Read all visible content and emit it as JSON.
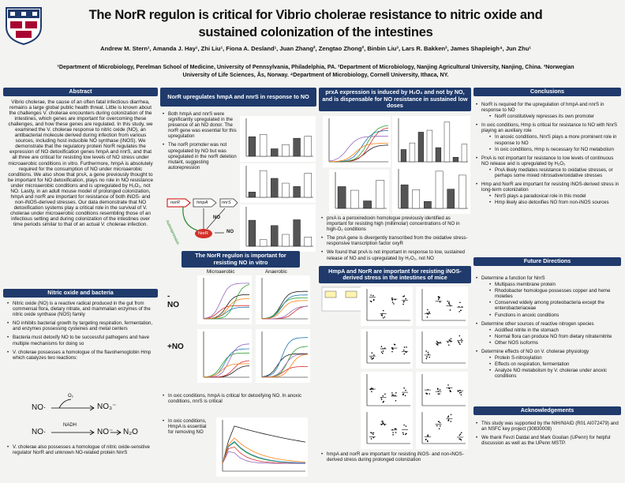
{
  "header": {
    "title": "The NorR regulon is critical for Vibrio cholerae resistance to nitric oxide and sustained colonization of the intestines",
    "authors": "Andrew M. Stern¹, Amanda J. Hay¹, Zhi Liu¹, Fiona A. Desland¹, Juan Zhang², Zengtao Zhong², Binbin Liu³, Lars R. Bakken³, James Shapleigh⁴, Jun Zhu¹",
    "affiliations": "¹Department of Microbiology, Perelman School of Medicine, University of Pennsylvania, Philadelphia, PA. ²Department of Microbiology, Nanjing Agricultural University, Nanjing, China. ³Norwegian University of Life Sciences, Ås, Norway. ⁴Department of Microbiology, Cornell University, Ithaca, NY."
  },
  "abstract": {
    "heading": "Abstract",
    "text": "Vibrio cholerae, the cause of an often fatal infectious diarrhea, remains a large global public health threat. Little is known about the challenges V. cholerae encounters during colonization of the intestines, which genes are important for overcoming these challenges, and how these genes are regulated. In this study, we examined the V. cholerae response to nitric oxide (NO), an antibacterial molecule derived during infection from various sources, including host inducible NO synthase (iNOS). We demonstrate that the regulatory protein NorR regulates the expression of NO detoxification genes hmpA and nnrS, and that all three are critical for resisting low levels of NO stress under microaerobic conditions in vitro. Furthermore, hmpA is absolutely required for the consumption of NO under microaerobic conditions. We also show that prxA, a gene previously thought to be important for NO detoxification, plays no role in NO resistance under microaerobic conditions and is upregulated by H₂O₂, not NO. Lastly, in an adult mouse model of prolonged colonization, hmpA and norR are important for resistance of both iNOS- and non-iNOS-derived stresses. Our data demonstrate that NO detoxification systems play a critical role in the survival of V. cholerae under microaerobic conditions resembling those of an infectious setting and during colonization of the intestines over time periods similar to that of an actual V. cholerae infection."
  },
  "nitric_oxide": {
    "heading": "Nitric oxide and bacteria",
    "bullets": [
      "Nitric oxide (NO) is a reactive radical produced in the gut from commensal flora, dietary nitrate, and mammalian enzymes of the nitric oxide synthase (NOS) family",
      "NO inhibits bacterial growth by targeting respiration, fermentation, and enzymes possessing cysteines and metal centers",
      "Bacteria must detoxify NO to be successful pathogens and have multiple mechanisms for doing so",
      "V. cholerae possesses a homologue of the flavohemoglobin Hmp which catalyzes two reactions:"
    ],
    "reactions": [
      {
        "substrate": "NO·",
        "cofactor": "O₂",
        "products": [
          "NO₃⁻"
        ]
      },
      {
        "substrate": "NO·",
        "cofactor": "NADH",
        "products": [
          "NO⁻",
          "N₂O"
        ]
      }
    ],
    "closing_bullets": [
      "V. cholerae also possesses a homologue of nitric oxide-sensitive regulator NorR and unknown NO-related protein NnrS"
    ]
  },
  "norr_upregulates": {
    "heading": "NorR upregulates hmpA and nnrS in response to NO",
    "bullets": [
      "Both hmpA and nnrS were significantly upregulated in the presence of an NO donor. The norR gene was essential for this upregulation",
      "The norR promoter was not upregulated by NO but was upregulated in the norR deletion mutant, suggesting autorepression"
    ],
    "diagram": {
      "genes": [
        "norR",
        "hmpA",
        "nnrS"
      ],
      "protein": "NorR",
      "feedback": "Autorepression",
      "signals": [
        "NO",
        "NO"
      ]
    }
  },
  "regulon": {
    "heading": "The NorR regulon is important for resisting NO in vitro",
    "conditions": [
      "Microaerobic",
      "Anaerobic"
    ],
    "treatments": [
      "-NO",
      "+NO"
    ],
    "bullets": [
      "In oxic conditions, hmpA is critical for detoxifying NO. In anoxic conditions, nnrS is critical"
    ],
    "side_bullets": [
      "In oxic conditions, HmpA is essential for removing NO"
    ]
  },
  "prxa": {
    "heading": "prxA expression is induced by H₂O₂ and not by NO, and is dispensable for NO resistance in sustained low doses",
    "bullets": [
      "prxA is a peroxiredoxin homologue previously identified as important for resisting high (millimolar) concentrations of NO in high-O₂ conditions",
      "The prxA gene is divergently transcribed from the oxidative stress-responsive transcription factor oxyR",
      "We found that prxA is not important in response to low, sustained release of NO and is upregulated by H₂O₂, not NO"
    ]
  },
  "mice": {
    "heading": "HmpA and NorR are important for resisting iNOS-derived stress in the intestines of mice",
    "bullets": [
      "hmpA and norR are important for resisting iNOS- and non-iNOS-derived stress during prolonged colonization"
    ]
  },
  "conclusions": {
    "heading": "Conclusions",
    "bullets": [
      {
        "text": "NorR is required for the upregulation of hmpA and nnrS in response to NO",
        "sub": [
          "NorR constitutively represses its own promoter"
        ]
      },
      {
        "text": "In oxic conditions, Hmp is critical for resistance to NO with NnrS playing an auxiliary role",
        "sub": [
          "In anoxic conditions, NnrS plays a more prominent role in response to NO",
          "In oxic conditions, Hmp is necessary for NO metabolism"
        ]
      },
      {
        "text": "PrxA is not important for resistance to low levels of continuous NO release and is upregulated by H₂O₂",
        "sub": [
          "PrxA likely mediates resistance to oxidative stresses, or perhaps some mixed nitrosative/oxidative stresses"
        ]
      },
      {
        "text": "Hmp and NorR are important for resisting iNOS-derived stress in long-term colonization",
        "sub": [
          "NnrS plays a paradoxical role in this model",
          "Hmp likely also detoxifies NO from non-iNOS sources"
        ]
      }
    ]
  },
  "future": {
    "heading": "Future Directions",
    "bullets": [
      {
        "text": "Determine a function for NnrS",
        "sub": [
          "Multipass membrane protein",
          "Rhodobacter homologue possesses copper and heme moieties",
          "Conserved widely among proteobacteria except the enterobacteriaceae",
          "Functions in anoxic conditions"
        ]
      },
      {
        "text": "Determine other sources of reactive nitrogen species",
        "sub": [
          "Acidified nitrite in the stomach",
          "Normal flora can produce NO from dietary nitrate/nitrite",
          "Other NOS isoforms"
        ]
      },
      {
        "text": "Determine effects of NO on V. cholerae physiology",
        "sub": [
          "Protein S-nitrosylation",
          "Effects on respiration, fermentation",
          "Analyze NO metabolism by V. cholerae under anoxic conditions"
        ]
      }
    ]
  },
  "acknowledgements": {
    "heading": "Acknowledgements",
    "bullets": [
      "This study was supported by the NIH/NIAID (R01 AI072479) and an NSFC key project (30830008)",
      "We thank Fevzi Daldal and Mark Goulian (UPenn) for helpful discussion as well as the UPenn MSTP."
    ]
  }
}
